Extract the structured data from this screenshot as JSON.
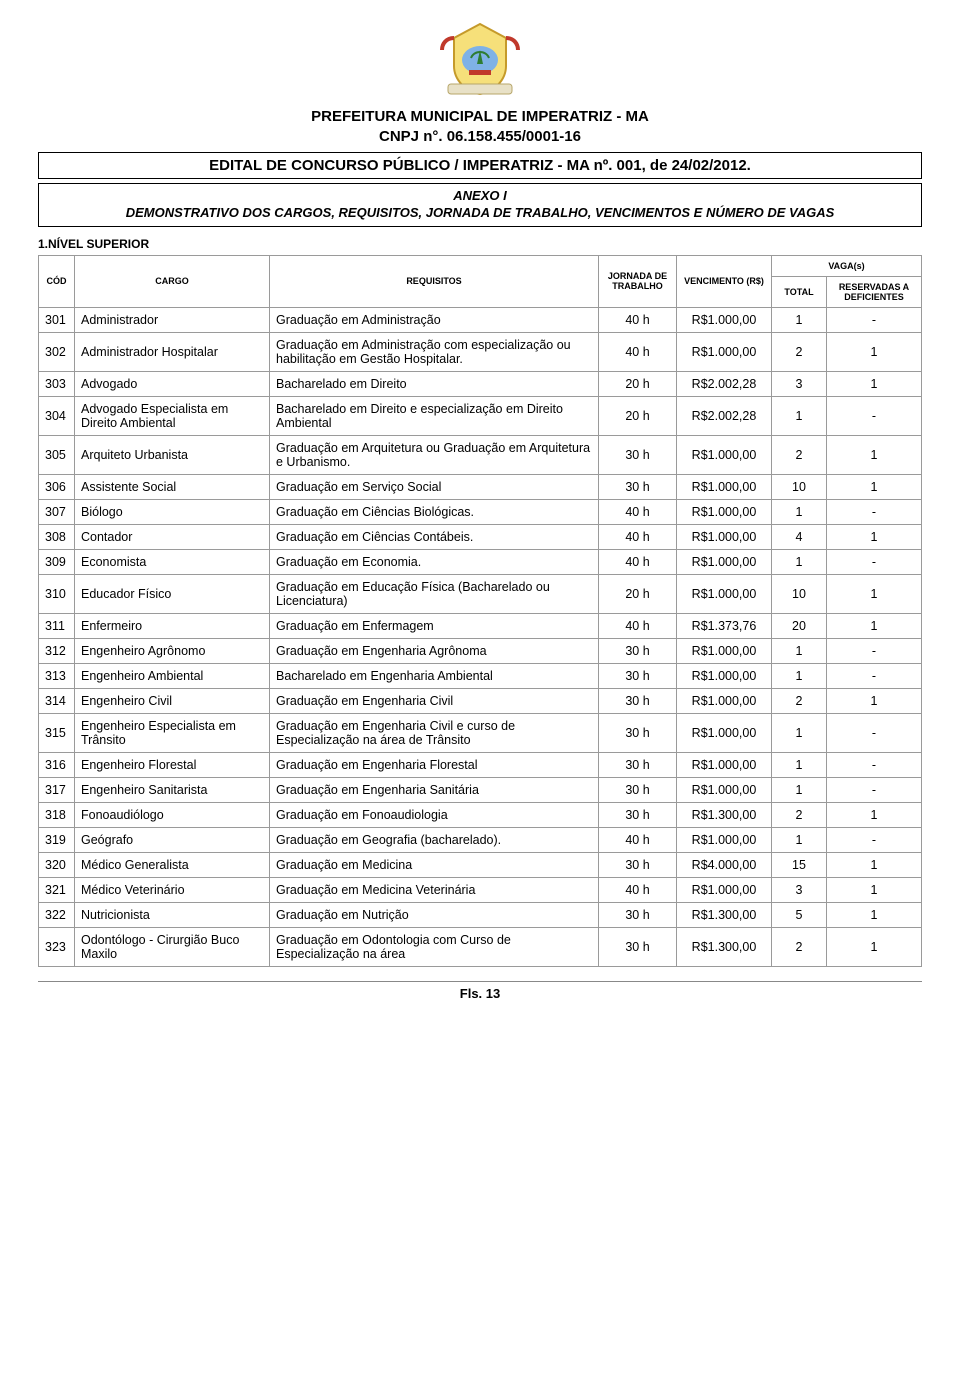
{
  "header": {
    "org_line1": "PREFEITURA MUNICIPAL DE IMPERATRIZ - MA",
    "org_line2": "CNPJ n°. 06.158.455/0001-16",
    "edital": "EDITAL DE CONCURSO PÚBLICO / IMPERATRIZ - MA nº. 001, de 24/02/2012.",
    "anexo_line1": "ANEXO I",
    "anexo_line2": "DEMONSTRATIVO DOS CARGOS, REQUISITOS, JORNADA DE TRABALHO, VENCIMENTOS E NÚMERO DE VAGAS"
  },
  "section": "1.NÍVEL SUPERIOR",
  "table": {
    "head": {
      "cod": "CÓD",
      "cargo": "CARGO",
      "requisitos": "REQUISITOS",
      "jornada": "JORNADA DE TRABALHO",
      "vencimento": "VENCIMENTO (R$)",
      "vagas": "VAGA(s)",
      "total": "TOTAL",
      "reservadas": "RESERVADAS A DEFICIENTES"
    },
    "rows": [
      {
        "cod": "301",
        "cargo": "Administrador",
        "req": "Graduação em Administração",
        "jor": "40 h",
        "venc": "R$1.000,00",
        "tot": "1",
        "res": "-"
      },
      {
        "cod": "302",
        "cargo": "Administrador Hospitalar",
        "req": "Graduação em Administração com especialização ou habilitação em Gestão Hospitalar.",
        "jor": "40 h",
        "venc": "R$1.000,00",
        "tot": "2",
        "res": "1"
      },
      {
        "cod": "303",
        "cargo": "Advogado",
        "req": "Bacharelado em Direito",
        "jor": "20 h",
        "venc": "R$2.002,28",
        "tot": "3",
        "res": "1"
      },
      {
        "cod": "304",
        "cargo": "Advogado Especialista em Direito Ambiental",
        "req": "Bacharelado em Direito e especialização em Direito Ambiental",
        "jor": "20 h",
        "venc": "R$2.002,28",
        "tot": "1",
        "res": "-"
      },
      {
        "cod": "305",
        "cargo": "Arquiteto Urbanista",
        "req": "Graduação em Arquitetura ou Graduação em Arquitetura e Urbanismo.",
        "jor": "30 h",
        "venc": "R$1.000,00",
        "tot": "2",
        "res": "1"
      },
      {
        "cod": "306",
        "cargo": "Assistente Social",
        "req": "Graduação em Serviço Social",
        "jor": "30 h",
        "venc": "R$1.000,00",
        "tot": "10",
        "res": "1"
      },
      {
        "cod": "307",
        "cargo": "Biólogo",
        "req": "Graduação em Ciências Biológicas.",
        "jor": "40 h",
        "venc": "R$1.000,00",
        "tot": "1",
        "res": "-"
      },
      {
        "cod": "308",
        "cargo": "Contador",
        "req": "Graduação em Ciências Contábeis.",
        "jor": "40 h",
        "venc": "R$1.000,00",
        "tot": "4",
        "res": "1"
      },
      {
        "cod": "309",
        "cargo": "Economista",
        "req": "Graduação em Economia.",
        "jor": "40 h",
        "venc": "R$1.000,00",
        "tot": "1",
        "res": "-"
      },
      {
        "cod": "310",
        "cargo": "Educador Físico",
        "req": "Graduação em Educação Física (Bacharelado ou Licenciatura)",
        "jor": "20 h",
        "venc": "R$1.000,00",
        "tot": "10",
        "res": "1"
      },
      {
        "cod": "311",
        "cargo": "Enfermeiro",
        "req": "Graduação em Enfermagem",
        "jor": "40 h",
        "venc": "R$1.373,76",
        "tot": "20",
        "res": "1"
      },
      {
        "cod": "312",
        "cargo": "Engenheiro Agrônomo",
        "req": "Graduação em Engenharia Agrônoma",
        "jor": "30 h",
        "venc": "R$1.000,00",
        "tot": "1",
        "res": "-"
      },
      {
        "cod": "313",
        "cargo": "Engenheiro Ambiental",
        "req": "Bacharelado em Engenharia Ambiental",
        "jor": "30 h",
        "venc": "R$1.000,00",
        "tot": "1",
        "res": "-"
      },
      {
        "cod": "314",
        "cargo": "Engenheiro Civil",
        "req": "Graduação em Engenharia Civil",
        "jor": "30 h",
        "venc": "R$1.000,00",
        "tot": "2",
        "res": "1"
      },
      {
        "cod": "315",
        "cargo": "Engenheiro Especialista em Trânsito",
        "req": "Graduação em Engenharia Civil e curso de Especialização na área de Trânsito",
        "jor": "30 h",
        "venc": "R$1.000,00",
        "tot": "1",
        "res": "-"
      },
      {
        "cod": "316",
        "cargo": "Engenheiro Florestal",
        "req": "Graduação em Engenharia Florestal",
        "jor": "30 h",
        "venc": "R$1.000,00",
        "tot": "1",
        "res": "-"
      },
      {
        "cod": "317",
        "cargo": "Engenheiro Sanitarista",
        "req": "Graduação em Engenharia Sanitária",
        "jor": "30 h",
        "venc": "R$1.000,00",
        "tot": "1",
        "res": "-"
      },
      {
        "cod": "318",
        "cargo": "Fonoaudiólogo",
        "req": "Graduação em Fonoaudiologia",
        "jor": "30 h",
        "venc": "R$1.300,00",
        "tot": "2",
        "res": "1"
      },
      {
        "cod": "319",
        "cargo": "Geógrafo",
        "req": "Graduação em Geografia (bacharelado).",
        "jor": "40 h",
        "venc": "R$1.000,00",
        "tot": "1",
        "res": "-"
      },
      {
        "cod": "320",
        "cargo": "Médico Generalista",
        "req": "Graduação em Medicina",
        "jor": "30 h",
        "venc": "R$4.000,00",
        "tot": "15",
        "res": "1"
      },
      {
        "cod": "321",
        "cargo": "Médico Veterinário",
        "req": "Graduação em Medicina Veterinária",
        "jor": "40 h",
        "venc": "R$1.000,00",
        "tot": "3",
        "res": "1"
      },
      {
        "cod": "322",
        "cargo": "Nutricionista",
        "req": "Graduação em Nutrição",
        "jor": "30 h",
        "venc": "R$1.300,00",
        "tot": "5",
        "res": "1"
      },
      {
        "cod": "323",
        "cargo": "Odontólogo - Cirurgião Buco Maxilo",
        "req": "Graduação em Odontologia com Curso de Especialização na área",
        "jor": "30 h",
        "venc": "R$1.300,00",
        "tot": "2",
        "res": "1"
      }
    ]
  },
  "footer": "Fls. 13",
  "colors": {
    "border": "#9a9a9a",
    "text": "#000000",
    "background": "#ffffff"
  }
}
